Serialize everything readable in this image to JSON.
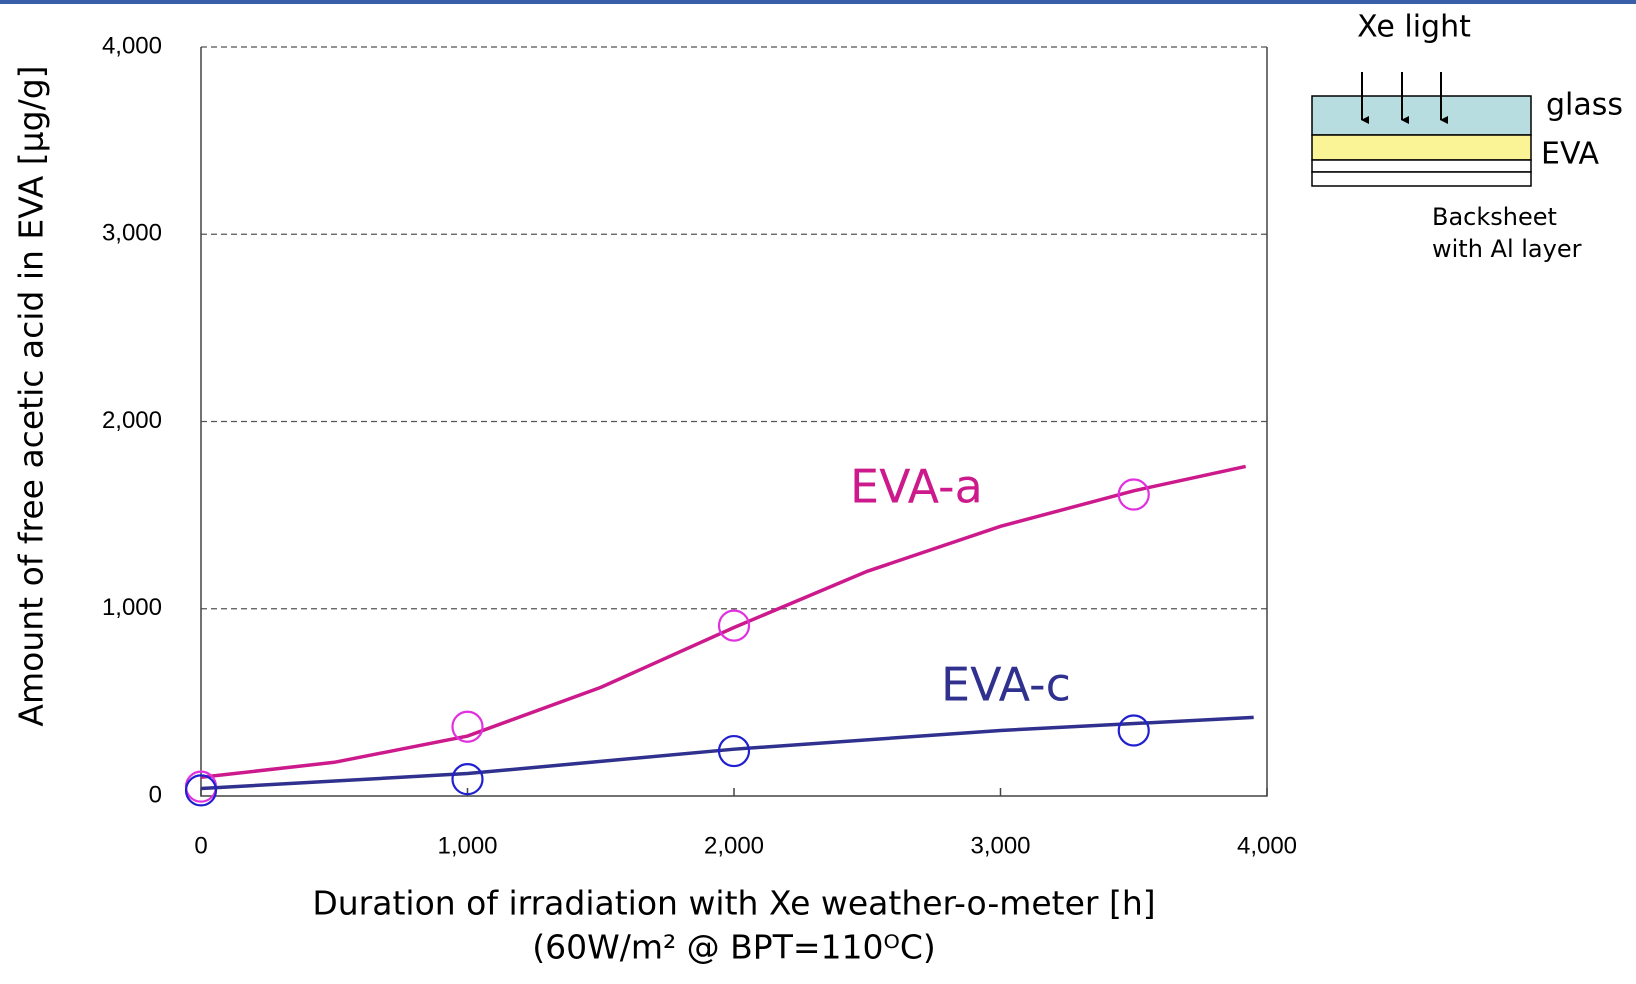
{
  "chart_data": {
    "type": "scatter",
    "x_label": "Duration of irradiation with Xe weather-o-meter [h]",
    "x_label_note": "(60W/m² @ BPT=110ᴼC)",
    "y_label": "Amount of free acetic acid in EVA [µg/g]",
    "xlim": [
      0,
      4000
    ],
    "ylim": [
      0,
      4000
    ],
    "xticks": [
      0,
      {
        "value": 1000,
        "label": "1,000"
      },
      {
        "value": 2000,
        "label": "2,000"
      },
      {
        "value": 3000,
        "label": "3,000"
      },
      {
        "value": 4000,
        "label": "4,000"
      }
    ],
    "yticks": [
      0,
      {
        "value": 1000,
        "label": "1,000"
      },
      {
        "value": 2000,
        "label": "2,000"
      },
      {
        "value": 3000,
        "label": "3,000"
      },
      {
        "value": 4000,
        "label": "4,000"
      }
    ],
    "grid": true,
    "series": [
      {
        "name": "EVA-a",
        "color": "#e030e0",
        "line_color": "#cc1a8c",
        "x": [
          0,
          1000,
          2000,
          3500
        ],
        "values": [
          50,
          370,
          910,
          1610
        ],
        "fit_x": [
          0,
          500,
          1000,
          1500,
          2000,
          2500,
          3000,
          3500,
          3920
        ],
        "fit_values": [
          100,
          180,
          320,
          580,
          900,
          1200,
          1440,
          1630,
          1760
        ]
      },
      {
        "name": "EVA-c",
        "color": "#2020d0",
        "line_color": "#30308f",
        "x": [
          0,
          1000,
          2000,
          3500
        ],
        "values": [
          30,
          90,
          240,
          350
        ],
        "fit_x": [
          0,
          1000,
          2000,
          3000,
          3950
        ],
        "fit_values": [
          40,
          120,
          250,
          350,
          420
        ]
      }
    ],
    "diagram": {
      "light": "Xe light",
      "layers": [
        "glass",
        "EVA"
      ],
      "backsheet": [
        "Backsheet",
        "with Al layer"
      ]
    }
  }
}
